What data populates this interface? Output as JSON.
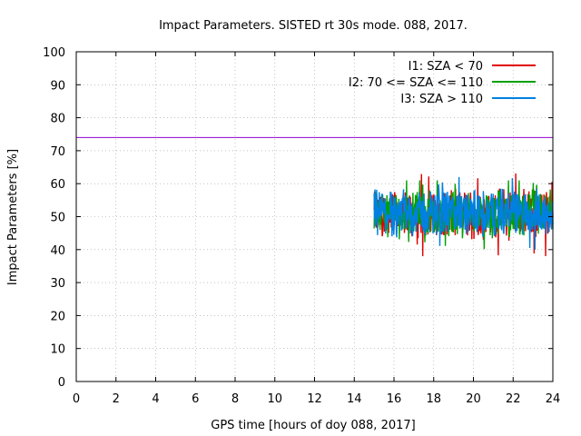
{
  "chart_data": {
    "type": "line",
    "title": "Impact Parameters. SISTED rt 30s mode. 088, 2017.",
    "xlabel": "GPS time [hours of doy 088, 2017]",
    "ylabel": "Impact Parameters [%]",
    "xlim": [
      0,
      24
    ],
    "ylim": [
      0,
      100
    ],
    "xticks": [
      0,
      2,
      4,
      6,
      8,
      10,
      12,
      14,
      16,
      18,
      20,
      22,
      24
    ],
    "yticks": [
      0,
      10,
      20,
      30,
      40,
      50,
      60,
      70,
      80,
      90,
      100
    ],
    "grid": true,
    "legend_position": "top-right",
    "reference_line": {
      "y": 74,
      "color": "#9400d3"
    },
    "series": [
      {
        "name": "I1: SZA < 70",
        "color": "#e00000",
        "x_start": 15.0,
        "x_end": 24.0,
        "mean": 51,
        "range": [
          38,
          65
        ]
      },
      {
        "name": "I2: 70 <= SZA <= 110",
        "color": "#00a000",
        "x_start": 15.0,
        "x_end": 24.0,
        "mean": 51,
        "range": [
          39,
          61
        ]
      },
      {
        "name": "I3: SZA > 110",
        "color": "#0080e0",
        "x_start": 15.0,
        "x_end": 24.0,
        "mean": 51,
        "range": [
          38,
          62
        ]
      }
    ]
  }
}
